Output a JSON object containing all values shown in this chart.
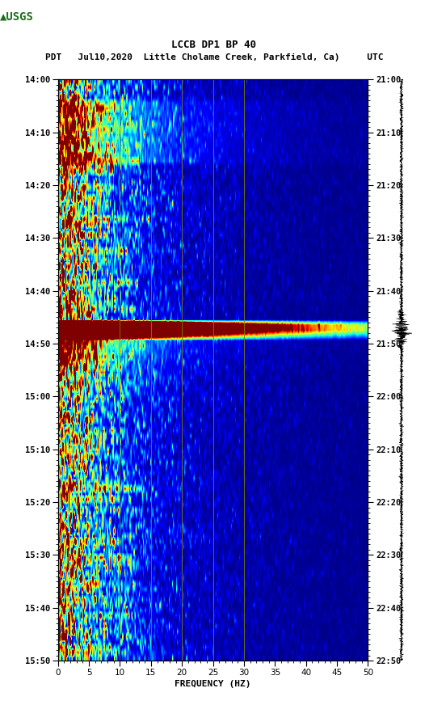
{
  "title_line1": "LCCB DP1 BP 40",
  "title_line2_pdt": "PDT   Jul10,2020",
  "title_line2_station": "Little Cholame Creek, Parkfield, Ca)",
  "title_line2_utc": "UTC",
  "xlabel": "FREQUENCY (HZ)",
  "freq_min": 0,
  "freq_max": 50,
  "freq_ticks": [
    0,
    5,
    10,
    15,
    20,
    25,
    30,
    35,
    40,
    45,
    50
  ],
  "time_labels_pdt": [
    "14:00",
    "14:10",
    "14:20",
    "14:30",
    "14:40",
    "14:50",
    "15:00",
    "15:10",
    "15:20",
    "15:30",
    "15:40",
    "15:50"
  ],
  "time_labels_utc": [
    "21:00",
    "21:10",
    "21:20",
    "21:30",
    "21:40",
    "21:50",
    "22:00",
    "22:10",
    "22:20",
    "22:30",
    "22:40",
    "22:50"
  ],
  "vert_line_freqs": [
    10,
    15,
    20,
    25,
    30
  ],
  "vert_line_color": "#808000",
  "colormap": "jet",
  "fig_bg": "#ffffff",
  "n_times": 110,
  "n_freqs": 300,
  "eq_time_idx": 46,
  "eq_duration": 3,
  "seed": 12345
}
